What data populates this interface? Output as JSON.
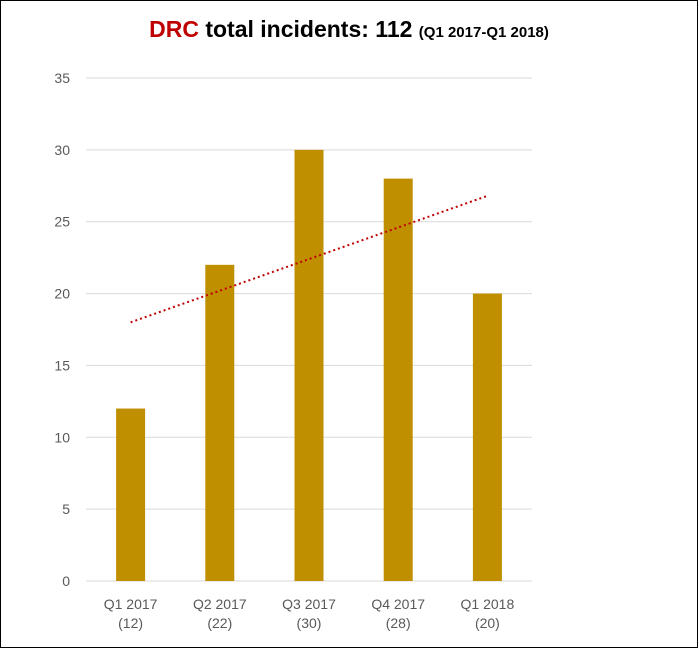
{
  "chart_data": {
    "type": "bar",
    "title_highlight": "DRC",
    "title": "total incidents: 112",
    "subtitle": "(Q1 2017-Q1 2018)",
    "categories": [
      "Q1 2017",
      "Q2 2017",
      "Q3 2017",
      "Q4 2017",
      "Q1 2018"
    ],
    "category_sublabels": [
      "(12)",
      "(22)",
      "(30)",
      "(28)",
      "(20)"
    ],
    "values": [
      12,
      22,
      30,
      28,
      20
    ],
    "ylim": [
      0,
      35
    ],
    "yticks": [
      "0",
      "5",
      "10",
      "15",
      "20",
      "25",
      "30",
      "35"
    ],
    "trendline": {
      "type": "linear",
      "start": 18,
      "end": 26.8
    },
    "grid": true,
    "colors": {
      "bar": "#bf8f00",
      "trendline": "#c00000",
      "grid": "#d9d9d9",
      "title_accent": "#c00000"
    }
  }
}
